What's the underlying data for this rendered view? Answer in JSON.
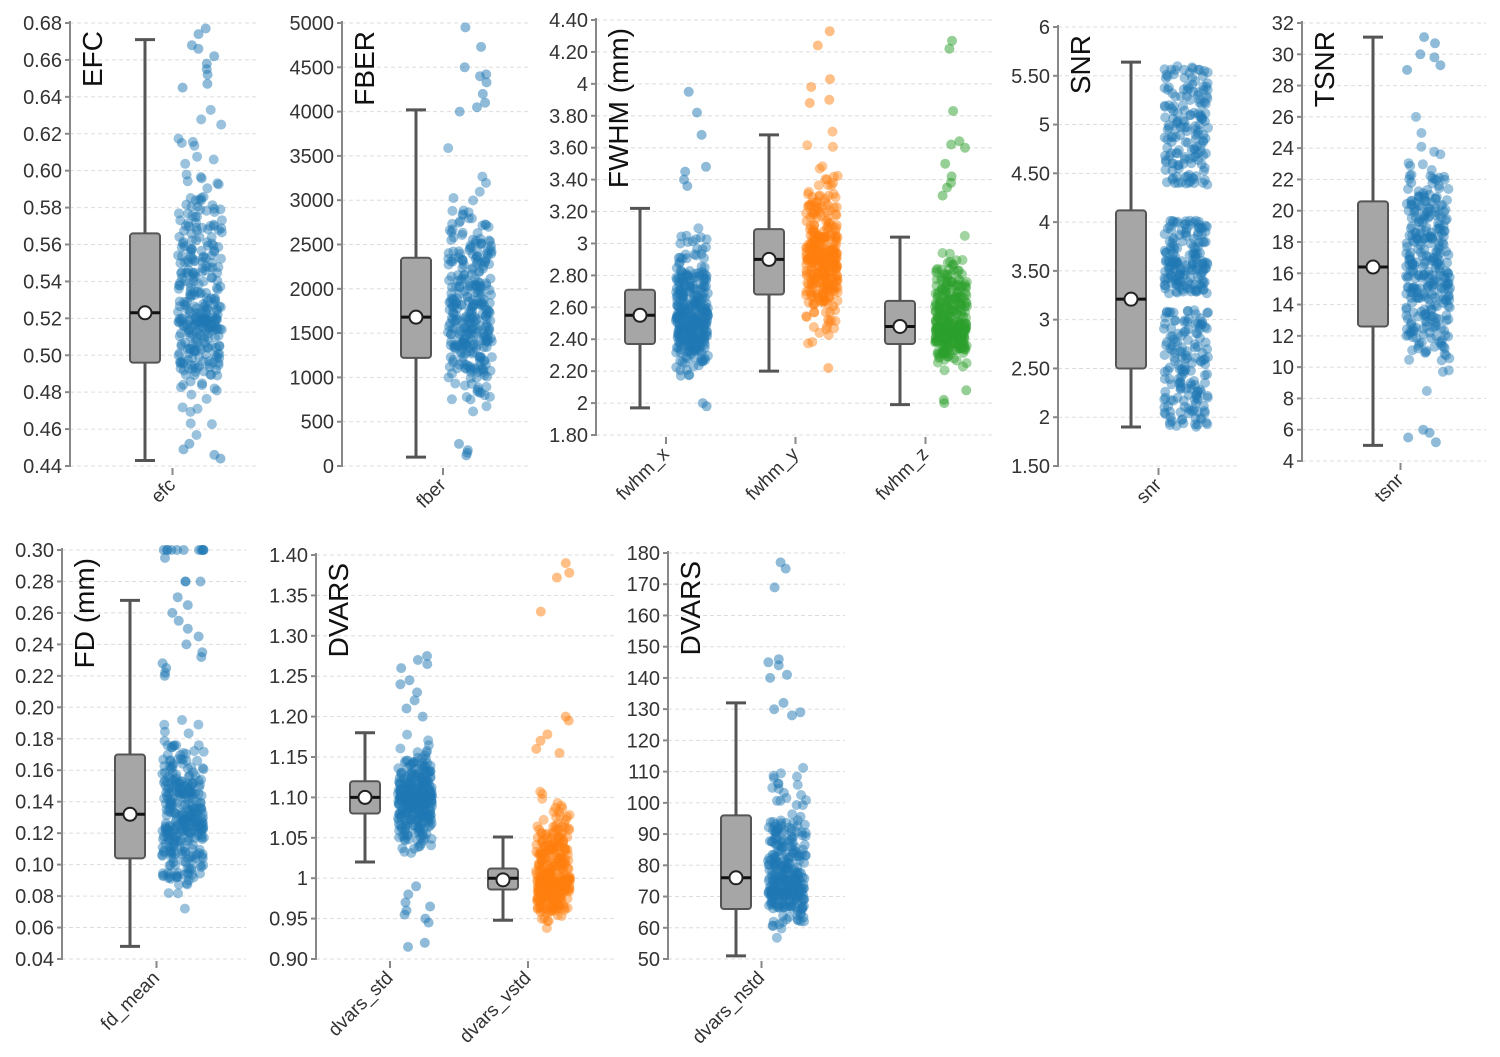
{
  "chart_data": [
    {
      "type": "box-strip",
      "ylabel": "EFC",
      "yticks": [
        "0.44",
        "0.46",
        "0.48",
        "0.50",
        "0.52",
        "0.54",
        "0.56",
        "0.58",
        "0.60",
        "0.62",
        "0.64",
        "0.66",
        "0.68"
      ],
      "ylim": [
        0.44,
        0.68
      ],
      "grid": true,
      "groups": [
        {
          "name": "efc",
          "color": "#1f77b4",
          "whisker_low": 0.443,
          "q1": 0.496,
          "median": 0.523,
          "q3": 0.566,
          "whisker_high": 0.671,
          "mean": 0.523,
          "points_range": [
            0.444,
            0.677
          ],
          "outliers": [
            0.677,
            0.674,
            0.668,
            0.666,
            0.662,
            0.658,
            0.655,
            0.652,
            0.647,
            0.645,
            0.452,
            0.449,
            0.446,
            0.444
          ]
        }
      ]
    },
    {
      "type": "box-strip",
      "ylabel": "FBER",
      "yticks": [
        "0",
        "500",
        "1000",
        "1500",
        "2000",
        "2500",
        "3000",
        "3500",
        "4000",
        "4500",
        "5000"
      ],
      "ylim": [
        0,
        5000
      ],
      "grid": true,
      "groups": [
        {
          "name": "fber",
          "color": "#1f77b4",
          "whisker_low": 100,
          "q1": 1220,
          "median": 1680,
          "q3": 2350,
          "whisker_high": 4020,
          "mean": 1680,
          "points_range": [
            100,
            3950
          ],
          "outliers": [
            4950,
            4730,
            4500,
            4420,
            4400,
            4330,
            4200,
            4100,
            4050,
            4000,
            120,
            150,
            180,
            250
          ]
        }
      ]
    },
    {
      "type": "box-strip",
      "ylabel": "FWHM (mm)",
      "yticks": [
        "1.80",
        "2",
        "2.20",
        "2.40",
        "2.60",
        "2.80",
        "3",
        "3.20",
        "3.40",
        "3.60",
        "3.80",
        "4",
        "4.20",
        "4.40"
      ],
      "ylim": [
        1.8,
        4.4
      ],
      "grid": true,
      "groups": [
        {
          "name": "fwhm_x",
          "color": "#1f77b4",
          "whisker_low": 1.97,
          "q1": 2.37,
          "median": 2.55,
          "q3": 2.71,
          "whisker_high": 3.22,
          "mean": 2.55,
          "points_range": [
            1.97,
            3.3
          ],
          "outliers": [
            3.95,
            3.82,
            3.68,
            3.48,
            3.45,
            3.4,
            3.36,
            1.98,
            2.0
          ]
        },
        {
          "name": "fwhm_y",
          "color": "#ff7f0e",
          "whisker_low": 2.2,
          "q1": 2.68,
          "median": 2.9,
          "q3": 3.09,
          "whisker_high": 3.68,
          "mean": 2.9,
          "points_range": [
            2.2,
            3.85
          ],
          "outliers": [
            4.33,
            4.24,
            4.03,
            3.98,
            3.9,
            3.88,
            2.22
          ]
        },
        {
          "name": "fwhm_z",
          "color": "#2ca02c",
          "whisker_low": 1.99,
          "q1": 2.37,
          "median": 2.48,
          "q3": 2.64,
          "whisker_high": 3.04,
          "mean": 2.48,
          "points_range": [
            2.15,
            3.2
          ],
          "outliers": [
            4.27,
            4.22,
            3.83,
            3.64,
            3.62,
            3.6,
            3.5,
            3.42,
            3.38,
            3.35,
            3.3,
            2.0,
            2.02,
            2.08
          ]
        }
      ]
    },
    {
      "type": "box-strip",
      "ylabel": "SNR",
      "yticks": [
        "1.50",
        "2",
        "2.50",
        "3",
        "3.50",
        "4",
        "4.50",
        "5",
        "5.50",
        "6"
      ],
      "ylim": [
        1.5,
        6
      ],
      "grid": true,
      "groups": [
        {
          "name": "snr",
          "color": "#1f77b4",
          "whisker_low": 1.9,
          "q1": 2.5,
          "median": 3.21,
          "q3": 4.12,
          "whisker_high": 5.64,
          "mean": 3.21,
          "point_bands": [
            [
              1.9,
              3.1
            ],
            [
              3.27,
              4.02
            ],
            [
              4.38,
              5.6
            ]
          ],
          "outliers": []
        }
      ]
    },
    {
      "type": "box-strip",
      "ylabel": "TSNR",
      "yticks": [
        "4",
        "6",
        "8",
        "10",
        "12",
        "14",
        "16",
        "18",
        "20",
        "22",
        "24",
        "26",
        "28",
        "30",
        "32"
      ],
      "ylim": [
        4,
        32
      ],
      "grid": true,
      "groups": [
        {
          "name": "tsnr",
          "color": "#1f77b4",
          "whisker_low": 5,
          "q1": 12.6,
          "median": 16.4,
          "q3": 20.6,
          "whisker_high": 31.1,
          "mean": 16.4,
          "points_range": [
            6.2,
            28.5
          ],
          "outliers": [
            31.1,
            30.7,
            30.0,
            29.8,
            29.3,
            29.0,
            5.2,
            5.5,
            5.8,
            6.0
          ]
        }
      ]
    },
    {
      "type": "box-strip",
      "ylabel": "FD (mm)",
      "yticks": [
        "0.04",
        "0.06",
        "0.08",
        "0.10",
        "0.12",
        "0.14",
        "0.16",
        "0.18",
        "0.20",
        "0.22",
        "0.24",
        "0.26",
        "0.28",
        "0.30"
      ],
      "ylim": [
        0.04,
        0.3
      ],
      "grid": true,
      "groups": [
        {
          "name": "fd_mean",
          "color": "#1f77b4",
          "whisker_low": 0.048,
          "q1": 0.104,
          "median": 0.132,
          "q3": 0.17,
          "whisker_high": 0.268,
          "mean": 0.132,
          "points_range": [
            0.048,
            0.215
          ],
          "outliers": [
            0.3,
            0.3,
            0.3,
            0.3,
            0.3,
            0.3,
            0.3,
            0.3,
            0.3,
            0.3,
            0.3,
            0.295,
            0.28,
            0.28,
            0.28,
            0.27,
            0.265,
            0.26,
            0.255,
            0.25,
            0.245,
            0.24,
            0.235,
            0.232,
            0.228,
            0.225,
            0.222,
            0.22
          ]
        }
      ]
    },
    {
      "type": "box-strip",
      "ylabel": "DVARS",
      "yticks": [
        "0.90",
        "0.95",
        "1",
        "1.05",
        "1.10",
        "1.15",
        "1.20",
        "1.25",
        "1.30",
        "1.35",
        "1.40"
      ],
      "ylim": [
        0.9,
        1.4
      ],
      "grid": true,
      "groups": [
        {
          "name": "dvars_std",
          "color": "#1f77b4",
          "whisker_low": 1.02,
          "q1": 1.08,
          "median": 1.1,
          "q3": 1.12,
          "whisker_high": 1.18,
          "mean": 1.1,
          "points_range": [
            1.0,
            1.19
          ],
          "outliers": [
            1.275,
            1.27,
            1.265,
            1.26,
            1.245,
            1.24,
            1.23,
            1.22,
            1.21,
            1.2,
            0.99,
            0.98,
            0.97,
            0.965,
            0.96,
            0.955,
            0.95,
            0.945,
            0.92,
            0.915
          ]
        },
        {
          "name": "dvars_vstd",
          "color": "#ff7f0e",
          "whisker_low": 0.948,
          "q1": 0.986,
          "median": 1.0,
          "q3": 1.012,
          "whisker_high": 1.051,
          "mean": 0.998,
          "points_range": [
            0.92,
            1.15
          ],
          "outliers": [
            1.39,
            1.378,
            1.372,
            1.33,
            1.2,
            1.195,
            1.178,
            1.17,
            1.16,
            1.155
          ]
        }
      ]
    },
    {
      "type": "box-strip",
      "ylabel": "DVARS",
      "yticks": [
        "50",
        "60",
        "70",
        "80",
        "90",
        "100",
        "110",
        "120",
        "130",
        "140",
        "150",
        "160",
        "170",
        "180"
      ],
      "ylim": [
        50,
        180
      ],
      "grid": true,
      "groups": [
        {
          "name": "dvars_nstd",
          "color": "#1f77b4",
          "whisker_low": 51,
          "q1": 66,
          "median": 76,
          "q3": 96,
          "whisker_high": 132,
          "mean": 76,
          "points_range": [
            52,
            126
          ],
          "outliers": [
            177,
            175,
            169,
            146,
            145,
            144,
            141,
            140,
            132,
            130,
            129,
            128
          ]
        }
      ]
    }
  ]
}
